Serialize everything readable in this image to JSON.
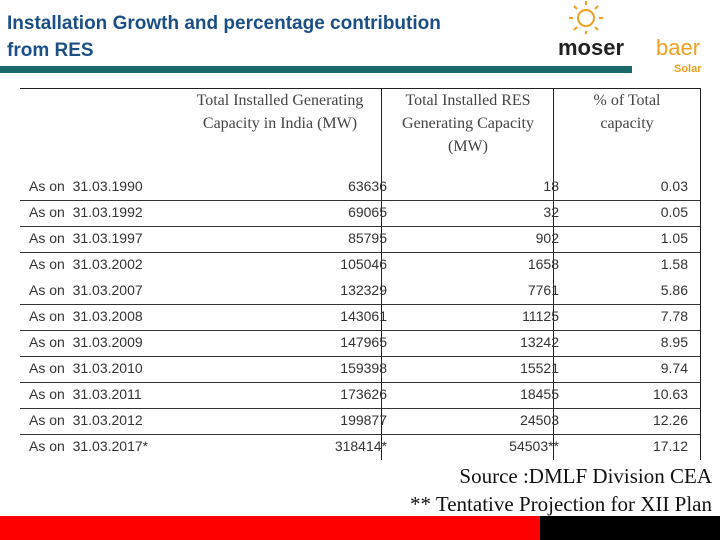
{
  "title": {
    "line1": "Installation Growth and percentage contribution",
    "line2": "from RES"
  },
  "logo": {
    "text_main": "moser",
    "text_accent": "baer",
    "text_sub": "Solar",
    "icon": "sun-face-icon"
  },
  "colors": {
    "title": "#1b4f86",
    "teal_bar": "#1a6a6c",
    "red_bar": "#ff0000",
    "black_bar": "#000000",
    "logo_orange": "#f0a020"
  },
  "table": {
    "headers": [
      "",
      "Total Installed Generating Capacity in India (MW)",
      "Total Installed RES Generating Capacity (MW)",
      "% of Total capacity"
    ],
    "rows": [
      [
        "As on  31.03.1990",
        "63636",
        "18",
        "0.03"
      ],
      [
        "As on  31.03.1992",
        "69065",
        "32",
        "0.05"
      ],
      [
        "As on  31.03.1997",
        "85795",
        "902",
        "1.05"
      ],
      [
        "As on  31.03.2002",
        "105046",
        "1658",
        "1.58"
      ],
      [
        "As on  31.03.2007",
        "132329",
        "7761",
        "5.86"
      ],
      [
        "As on  31.03.2008",
        "143061",
        "11125",
        "7.78"
      ],
      [
        "As on  31.03.2009",
        "147965",
        "13242",
        "8.95"
      ],
      [
        "As on  31.03.2010",
        "159398",
        "15521",
        "9.74"
      ],
      [
        "As on  31.03.2011",
        "173626",
        "18455",
        "10.63"
      ],
      [
        "As on  31.03.2012",
        "199877",
        "24503",
        "12.26"
      ],
      [
        "As on  31.03.2017*",
        "318414*",
        "54503**",
        "17.12"
      ]
    ]
  },
  "footer": {
    "source": "Source :DMLF Division CEA",
    "note": "** Tentative Projection for XII Plan"
  }
}
